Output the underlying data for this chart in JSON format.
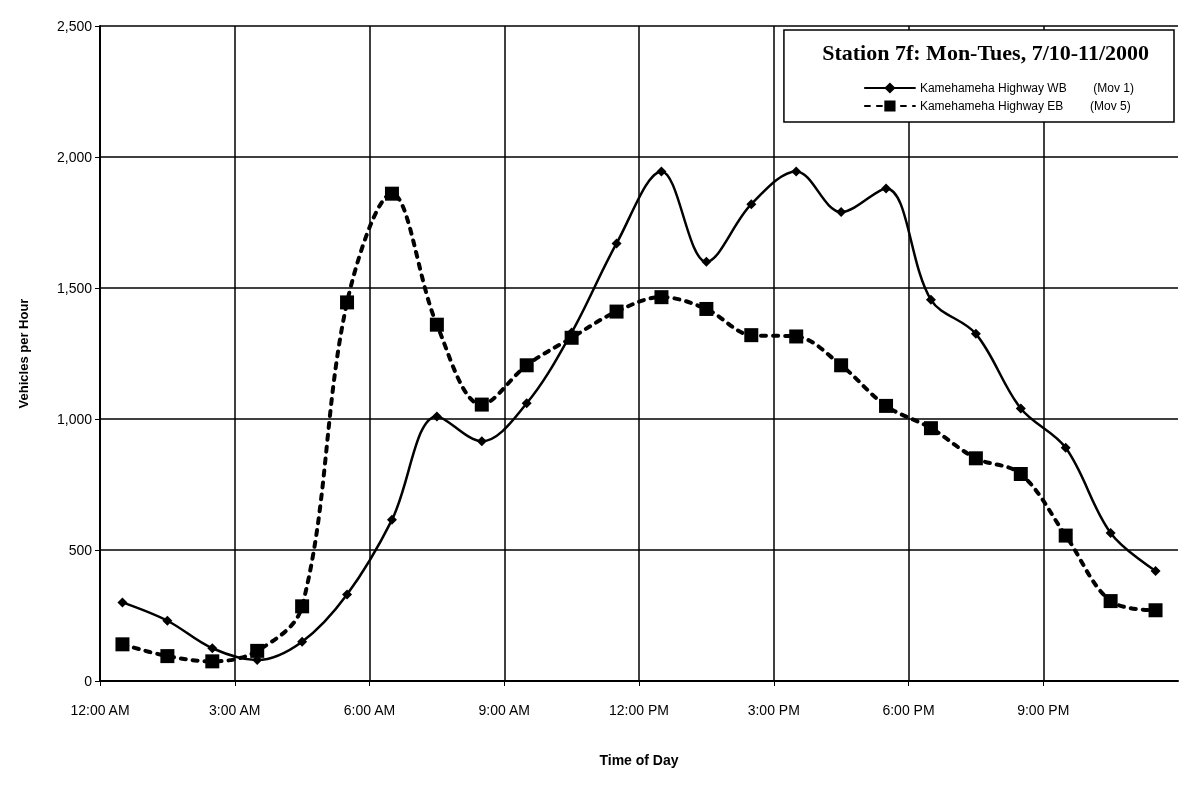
{
  "chart_data": {
    "type": "line",
    "title": "Station 7f: Mon-Tues, 7/10-11/2000",
    "xlabel": "Time of Day",
    "ylabel": "Vehicles per Hour",
    "x": [
      0.5,
      1.5,
      2.5,
      3.5,
      4.5,
      5.5,
      6.5,
      7.5,
      8.5,
      9.5,
      10.5,
      11.5,
      12.5,
      13.5,
      14.5,
      15.5,
      16.5,
      17.5,
      18.5,
      19.5,
      20.5,
      21.5,
      22.5,
      23.5
    ],
    "series": [
      {
        "name": "Kamehameha Highway WB        (Mov 1)",
        "color": "#000000",
        "marker": "diamond",
        "line_style": "solid",
        "values": [
          300,
          230,
          125,
          80,
          150,
          330,
          615,
          1010,
          915,
          1060,
          1330,
          1670,
          1945,
          1600,
          1820,
          1945,
          1790,
          1880,
          1455,
          1325,
          1040,
          890,
          565,
          420
        ]
      },
      {
        "name": "Kamehameha Highway EB        (Mov 5)",
        "color": "#000000",
        "marker": "square",
        "line_style": "dashed",
        "values": [
          140,
          95,
          75,
          115,
          285,
          1445,
          1860,
          1360,
          1055,
          1205,
          1310,
          1410,
          1465,
          1420,
          1320,
          1315,
          1205,
          1050,
          965,
          850,
          790,
          555,
          305,
          270
        ]
      }
    ],
    "xlim": [
      0,
      24
    ],
    "xticks": [
      {
        "value": 0,
        "label": "12:00 AM"
      },
      {
        "value": 3,
        "label": "3:00 AM"
      },
      {
        "value": 6,
        "label": "6:00 AM"
      },
      {
        "value": 9,
        "label": "9:00 AM"
      },
      {
        "value": 12,
        "label": "12:00 PM"
      },
      {
        "value": 15,
        "label": "3:00 PM"
      },
      {
        "value": 18,
        "label": "6:00 PM"
      },
      {
        "value": 21,
        "label": "9:00 PM"
      }
    ],
    "ylim": [
      0,
      2500
    ],
    "yticks": [
      0,
      {
        "value": 500,
        "label": "500"
      },
      {
        "value": 1000,
        "label": "1,000"
      },
      {
        "value": 1500,
        "label": "1,500"
      },
      {
        "value": 2000,
        "label": "2,000"
      },
      {
        "value": 2500,
        "label": "2,500"
      }
    ],
    "grid": true,
    "legend": "top right"
  }
}
